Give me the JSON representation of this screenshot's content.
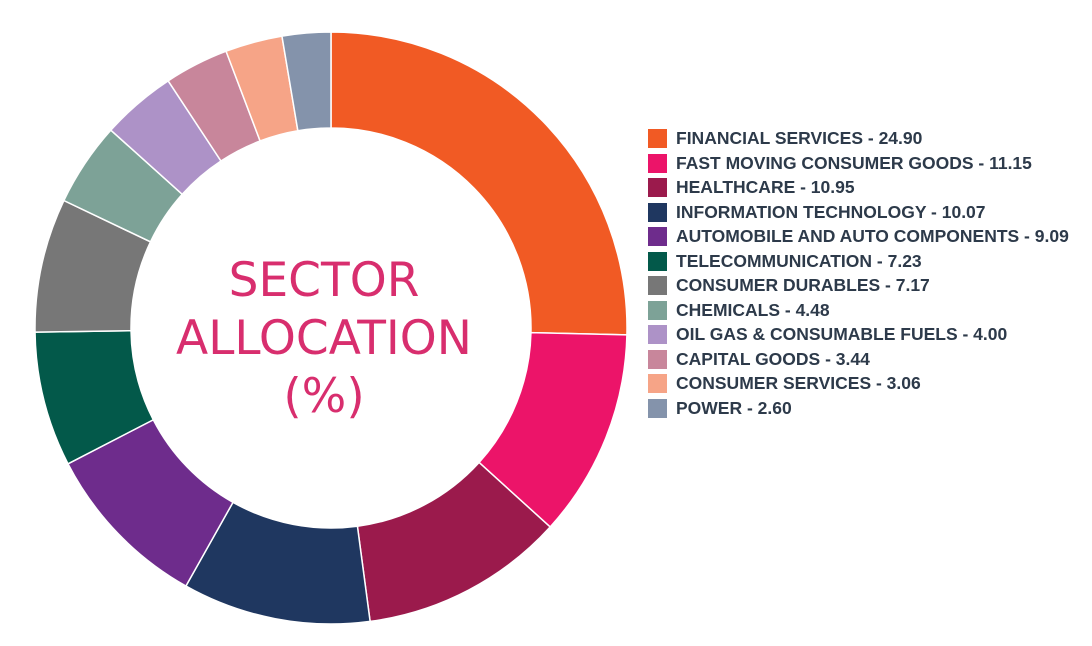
{
  "chart_data": {
    "type": "pie",
    "title": "SECTOR ALLOCATION (%)",
    "title_lines": [
      "SECTOR",
      "ALLOCATION",
      "(%)"
    ],
    "donut": true,
    "legend_position": "right",
    "slices": [
      {
        "label": "FINANCIAL SERVICES - 24.90",
        "name": "FINANCIAL SERVICES",
        "value": 24.9,
        "color": "#f15a24"
      },
      {
        "label": "FAST MOVING CONSUMER GOODS - 11.15",
        "name": "FAST MOVING CONSUMER GOODS",
        "value": 11.15,
        "color": "#ec1469"
      },
      {
        "label": "HEALTHCARE - 10.95",
        "name": "HEALTHCARE",
        "value": 10.95,
        "color": "#9b1a4c"
      },
      {
        "label": "INFORMATION TECHNOLOGY - 10.07",
        "name": "INFORMATION TECHNOLOGY",
        "value": 10.07,
        "color": "#1f3760"
      },
      {
        "label": "AUTOMOBILE AND AUTO COMPONENTS - 9.09",
        "name": "AUTOMOBILE AND AUTO COMPONENTS",
        "value": 9.09,
        "color": "#6e2c8c"
      },
      {
        "label": "TELECOMMUNICATION - 7.23",
        "name": "TELECOMMUNICATION",
        "value": 7.23,
        "color": "#03594a"
      },
      {
        "label": "CONSUMER DURABLES - 7.17",
        "name": "CONSUMER DURABLES",
        "value": 7.17,
        "color": "#777777"
      },
      {
        "label": "CHEMICALS - 4.48",
        "name": "CHEMICALS",
        "value": 4.48,
        "color": "#7da297"
      },
      {
        "label": "OIL GAS & CONSUMABLE FUELS - 4.00",
        "name": "OIL GAS & CONSUMABLE FUELS",
        "value": 4.0,
        "color": "#ad92c7"
      },
      {
        "label": "CAPITAL GOODS - 3.44",
        "name": "CAPITAL GOODS",
        "value": 3.44,
        "color": "#c8869b"
      },
      {
        "label": "CONSUMER SERVICES - 3.06",
        "name": "CONSUMER SERVICES",
        "value": 3.06,
        "color": "#f6a487"
      },
      {
        "label": "POWER - 2.60",
        "name": "POWER",
        "value": 2.6,
        "color": "#8493ab"
      }
    ]
  }
}
